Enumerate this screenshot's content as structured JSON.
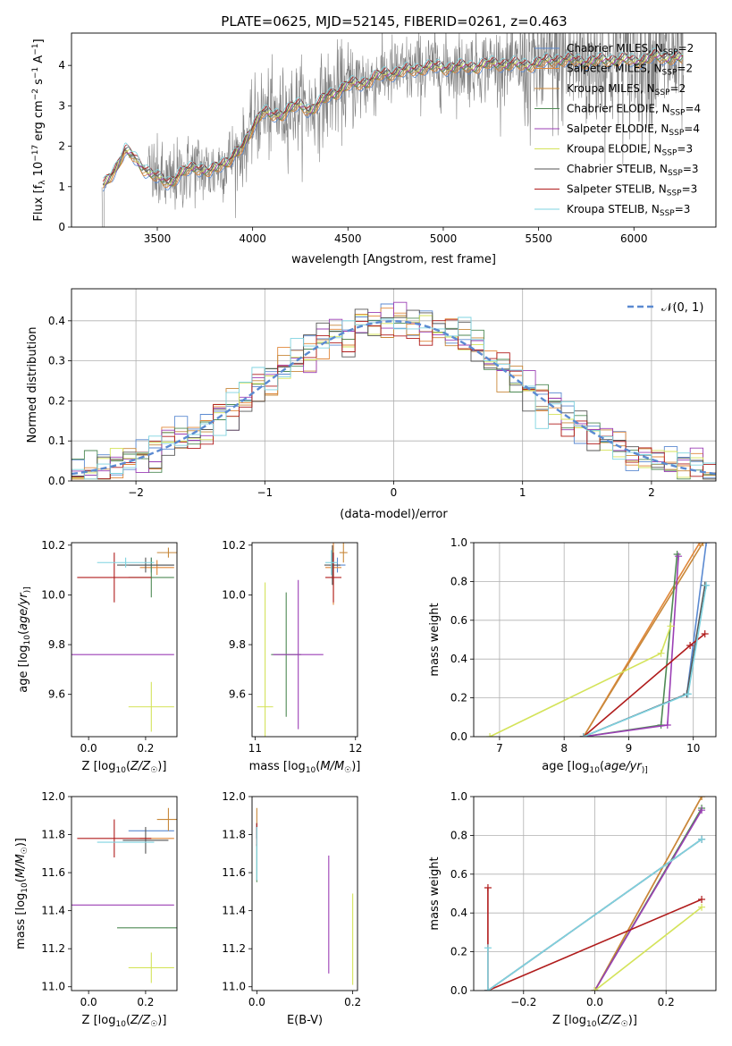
{
  "figure": {
    "title": "PLATE=0625, MJD=52145, FIBERID=0261, z=0.463"
  },
  "models": [
    {
      "name": "Chabrier MILES, N_SSP=2",
      "label_main": "Chabrier MILES, N",
      "label_sub": "SSP",
      "label_end": "=2",
      "color": "#5b8ad1"
    },
    {
      "name": "Salpeter MILES, N_SSP=2",
      "label_main": "Salpeter MILES, N",
      "label_sub": "SSP",
      "label_end": "=2",
      "color": "#e0873a"
    },
    {
      "name": "Kroupa MILES, N_SSP=2",
      "label_main": "Kroupa MILES, N",
      "label_sub": "SSP",
      "label_end": "=2",
      "color": "#c8883a"
    },
    {
      "name": "Chabrier ELODIE, N_SSP=4",
      "label_main": "Chabrier ELODIE, N",
      "label_sub": "SSP",
      "label_end": "=4",
      "color": "#4f8a55"
    },
    {
      "name": "Salpeter ELODIE, N_SSP=4",
      "label_main": "Salpeter ELODIE, N",
      "label_sub": "SSP",
      "label_end": "=4",
      "color": "#9b3fb5"
    },
    {
      "name": "Kroupa ELODIE, N_SSP=3",
      "label_main": "Kroupa ELODIE, N",
      "label_sub": "SSP",
      "label_end": "=3",
      "color": "#d4e35a"
    },
    {
      "name": "Chabrier STELIB, N_SSP=3",
      "label_main": "Chabrier STELIB, N",
      "label_sub": "SSP",
      "label_end": "=3",
      "color": "#555555"
    },
    {
      "name": "Salpeter STELIB, N_SSP=3",
      "label_main": "Salpeter STELIB, N",
      "label_sub": "SSP",
      "label_end": "=3",
      "color": "#b01c1c"
    },
    {
      "name": "Kroupa STELIB, N_SSP=3",
      "label_main": "Kroupa STELIB, N",
      "label_sub": "SSP",
      "label_end": "=3",
      "color": "#7fd3e0"
    }
  ],
  "chart_data": [
    {
      "id": "spectrum",
      "type": "line",
      "xlabel": "wavelength [Angstrom, rest frame]",
      "ylabel": "Flux [f_λ 10^-17 erg cm^-2 s^-1 A^-1]",
      "ylabel_parts": {
        "a": "Flux [f",
        "b": "λ",
        "c": "10",
        "d": "−17",
        "e": " erg cm",
        "f": "−2",
        "g": " s",
        "h": "−1",
        "i": " A",
        "j": "−1",
        "k": "]"
      },
      "xlim": [
        3050,
        6430
      ],
      "ylim": [
        0,
        4.8
      ],
      "xticks": [
        3500,
        4000,
        4500,
        5000,
        5500,
        6000
      ],
      "yticks": [
        0,
        1,
        2,
        3,
        4
      ],
      "data_color": "#808080",
      "continuum": [
        [
          3220,
          1.0
        ],
        [
          3280,
          1.45
        ],
        [
          3330,
          1.9
        ],
        [
          3380,
          1.7
        ],
        [
          3420,
          1.5
        ],
        [
          3460,
          1.35
        ],
        [
          3500,
          1.2
        ],
        [
          3560,
          1.1
        ],
        [
          3620,
          1.3
        ],
        [
          3700,
          1.5
        ],
        [
          3780,
          1.35
        ],
        [
          3850,
          1.6
        ],
        [
          3900,
          1.75
        ],
        [
          3950,
          1.95
        ],
        [
          4000,
          2.5
        ],
        [
          4050,
          2.85
        ],
        [
          4100,
          2.75
        ],
        [
          4150,
          2.8
        ],
        [
          4200,
          2.95
        ],
        [
          4250,
          3.0
        ],
        [
          4300,
          2.9
        ],
        [
          4350,
          3.05
        ],
        [
          4400,
          3.25
        ],
        [
          4500,
          3.5
        ],
        [
          4600,
          3.6
        ],
        [
          4700,
          3.8
        ],
        [
          4800,
          3.85
        ],
        [
          4900,
          3.95
        ],
        [
          5000,
          3.95
        ],
        [
          5100,
          3.95
        ],
        [
          5200,
          4.0
        ],
        [
          5300,
          4.05
        ],
        [
          5400,
          4.0
        ],
        [
          5500,
          4.05
        ],
        [
          5600,
          4.15
        ],
        [
          5700,
          4.1
        ],
        [
          5800,
          4.1
        ],
        [
          5900,
          4.15
        ],
        [
          6000,
          4.1
        ],
        [
          6100,
          4.2
        ],
        [
          6200,
          4.2
        ],
        [
          6250,
          4.15
        ]
      ],
      "legend_position": "top-right"
    },
    {
      "id": "residuals",
      "type": "line",
      "xlabel": "(data-model)/error",
      "ylabel": "Normed distribution",
      "xlim": [
        -2.5,
        2.5
      ],
      "ylim": [
        0,
        0.48
      ],
      "xticks": [
        -2,
        -1,
        0,
        1,
        2
      ],
      "xticklabels": [
        "−2",
        "−1",
        "0",
        "1",
        "2"
      ],
      "yticks": [
        0.0,
        0.1,
        0.2,
        0.3,
        0.4
      ],
      "yticklabels": [
        "0.0",
        "0.1",
        "0.2",
        "0.3",
        "0.4"
      ],
      "grid": true,
      "gaussian": {
        "label": "𝒩(0, 1)",
        "color": "#5b8ad1",
        "mean": 0,
        "sigma": 1
      },
      "legend_position": "top-right"
    },
    {
      "id": "age_vs_Z",
      "type": "scatter",
      "xlabel": "Z [log10(Z/Z☉)]",
      "xlabel_parts": {
        "a": "Z [log",
        "b": "10",
        "c": "(",
        "d": "Z/Z",
        "e": "☉",
        "f": ")]"
      },
      "ylabel": "age [log10(age/yr)]",
      "ylabel_parts": {
        "a": "age  [log",
        "b": "10",
        "c": "(",
        "d": "age/yr",
        "e": ")]"
      },
      "xlim": [
        -0.06,
        0.31
      ],
      "ylim": [
        9.43,
        10.21
      ],
      "xticks": [
        0.0,
        0.2
      ],
      "xticklabels": [
        "0.0",
        "0.2"
      ],
      "yticks": [
        9.6,
        9.8,
        10.0,
        10.2
      ],
      "yticklabels": [
        "9.6",
        "9.8",
        "10.0",
        "10.2"
      ],
      "points": [
        {
          "model": 0,
          "x": 0.22,
          "y": 10.12,
          "xerr": 0.08,
          "yerr": 0.03
        },
        {
          "model": 1,
          "x": 0.24,
          "y": 10.11,
          "xerr": 0.06,
          "yerr": 0.03
        },
        {
          "model": 2,
          "x": 0.28,
          "y": 10.17,
          "xerr": 0.04,
          "yerr": 0.02
        },
        {
          "model": 3,
          "x": 0.22,
          "y": 10.07,
          "xerr": 0.08,
          "yerr": 0.08
        },
        {
          "model": 4,
          "x": 0.12,
          "y": 9.76,
          "xerr": 0.18,
          "yerr": 0.0
        },
        {
          "model": 5,
          "x": 0.22,
          "y": 9.55,
          "xerr": 0.08,
          "yerr": 0.1
        },
        {
          "model": 6,
          "x": 0.2,
          "y": 10.12,
          "xerr": 0.1,
          "yerr": 0.03
        },
        {
          "model": 7,
          "x": 0.09,
          "y": 10.07,
          "xerr": 0.13,
          "yerr": 0.1
        },
        {
          "model": 8,
          "x": 0.13,
          "y": 10.13,
          "xerr": 0.1,
          "yerr": 0.02
        }
      ]
    },
    {
      "id": "age_vs_mass",
      "type": "scatter",
      "xlabel": "mass [log10(M/M☉)]",
      "xlabel_parts": {
        "a": "mass [log",
        "b": "10",
        "c": "(",
        "d": "M/M",
        "e": "☉",
        "f": ")]"
      },
      "xlim": [
        10.97,
        12.02
      ],
      "ylim": [
        9.43,
        10.21
      ],
      "xticks": [
        11,
        12
      ],
      "xticklabels": [
        "11",
        "12"
      ],
      "yticks": [
        9.6,
        9.8,
        10.0,
        10.2
      ],
      "yticklabels": [
        "9.6",
        "9.8",
        "10.0",
        "10.2"
      ],
      "points": [
        {
          "model": 0,
          "x": 11.82,
          "y": 10.12,
          "xerr": 0.08,
          "yerr": 0.03
        },
        {
          "model": 1,
          "x": 11.78,
          "y": 10.11,
          "xerr": 0.08,
          "yerr": 0.15
        },
        {
          "model": 2,
          "x": 11.88,
          "y": 10.17,
          "xerr": 0.04,
          "yerr": 0.04
        },
        {
          "model": 3,
          "x": 11.31,
          "y": 9.76,
          "xerr": 0.15,
          "yerr": 0.25
        },
        {
          "model": 4,
          "x": 11.43,
          "y": 9.76,
          "xerr": 0.25,
          "yerr": 0.3
        },
        {
          "model": 5,
          "x": 11.1,
          "y": 9.55,
          "xerr": 0.08,
          "yerr": 0.5
        },
        {
          "model": 6,
          "x": 11.77,
          "y": 10.12,
          "xerr": 0.08,
          "yerr": 0.08
        },
        {
          "model": 7,
          "x": 11.78,
          "y": 10.07,
          "xerr": 0.08,
          "yerr": 0.1
        },
        {
          "model": 8,
          "x": 11.76,
          "y": 10.13,
          "xerr": 0.06,
          "yerr": 0.05
        }
      ]
    },
    {
      "id": "massweight_vs_age",
      "type": "line",
      "xlabel": "age [log10(age/yr)]",
      "xlabel_parts": {
        "a": "age  [log",
        "b": "10",
        "c": "(",
        "d": "age/yr",
        "e": ")]"
      },
      "ylabel": "mass weight",
      "xlim": [
        6.6,
        10.35
      ],
      "ylim": [
        0,
        1.0
      ],
      "xticks": [
        7,
        8,
        9,
        10
      ],
      "xticklabels": [
        "7",
        "8",
        "9",
        "10"
      ],
      "yticks": [
        0.0,
        0.2,
        0.4,
        0.6,
        0.8,
        1.0
      ],
      "yticklabels": [
        "0.0",
        "0.2",
        "0.4",
        "0.6",
        "0.8",
        "1.0"
      ],
      "grid": true,
      "series": [
        {
          "model": 0,
          "x": [
            8.3,
            9.9,
            10.2
          ],
          "y": [
            0.0,
            0.22,
            1.0
          ]
        },
        {
          "model": 1,
          "x": [
            8.3,
            10.1
          ],
          "y": [
            0.0,
            1.0
          ]
        },
        {
          "model": 2,
          "x": [
            8.3,
            10.15
          ],
          "y": [
            0.0,
            1.0
          ]
        },
        {
          "model": 3,
          "x": [
            8.3,
            9.5,
            9.75
          ],
          "y": [
            0.0,
            0.06,
            0.94
          ]
        },
        {
          "model": 4,
          "x": [
            8.3,
            9.6,
            9.77
          ],
          "y": [
            0.0,
            0.06,
            0.93
          ]
        },
        {
          "model": 5,
          "x": [
            6.85,
            9.5,
            9.65
          ],
          "y": [
            0.0,
            0.43,
            0.57
          ]
        },
        {
          "model": 6,
          "x": [
            8.3,
            9.9,
            10.18
          ],
          "y": [
            0.0,
            0.22,
            0.78
          ]
        },
        {
          "model": 7,
          "x": [
            8.3,
            9.95,
            10.18
          ],
          "y": [
            0.0,
            0.47,
            0.53
          ]
        },
        {
          "model": 8,
          "x": [
            8.3,
            9.92,
            10.2
          ],
          "y": [
            0.0,
            0.22,
            0.78
          ]
        }
      ]
    },
    {
      "id": "mass_vs_Z",
      "type": "scatter",
      "xlabel": "Z [log10(Z/Z☉)]",
      "xlabel_parts": {
        "a": "Z [log",
        "b": "10",
        "c": "(",
        "d": "Z/Z",
        "e": "☉",
        "f": ")]"
      },
      "ylabel": "mass [log10(M/M☉)]",
      "ylabel_parts": {
        "a": "mass [log",
        "b": "10",
        "c": "(",
        "d": "M/M",
        "e": "☉",
        "f": ")]"
      },
      "xlim": [
        -0.06,
        0.31
      ],
      "ylim": [
        10.98,
        12.0
      ],
      "xticks": [
        0.0,
        0.2
      ],
      "xticklabels": [
        "0.0",
        "0.2"
      ],
      "yticks": [
        11.0,
        11.2,
        11.4,
        11.6,
        11.8,
        12.0
      ],
      "yticklabels": [
        "11.0",
        "11.2",
        "11.4",
        "11.6",
        "11.8",
        "12.0"
      ],
      "points": [
        {
          "model": 0,
          "x": 0.22,
          "y": 11.82,
          "xerr": 0.08,
          "yerr": 0.0
        },
        {
          "model": 1,
          "x": 0.24,
          "y": 11.78,
          "xerr": 0.06,
          "yerr": 0.0
        },
        {
          "model": 2,
          "x": 0.28,
          "y": 11.88,
          "xerr": 0.04,
          "yerr": 0.06
        },
        {
          "model": 3,
          "x": 0.22,
          "y": 11.31,
          "xerr": 0.12,
          "yerr": 0.0
        },
        {
          "model": 4,
          "x": 0.12,
          "y": 11.43,
          "xerr": 0.18,
          "yerr": 0.0
        },
        {
          "model": 5,
          "x": 0.22,
          "y": 11.1,
          "xerr": 0.08,
          "yerr": 0.08
        },
        {
          "model": 6,
          "x": 0.2,
          "y": 11.77,
          "xerr": 0.08,
          "yerr": 0.07
        },
        {
          "model": 7,
          "x": 0.09,
          "y": 11.78,
          "xerr": 0.13,
          "yerr": 0.1
        },
        {
          "model": 8,
          "x": 0.13,
          "y": 11.76,
          "xerr": 0.1,
          "yerr": 0.0
        }
      ]
    },
    {
      "id": "mass_vs_EBV",
      "type": "scatter",
      "xlabel": "E(B-V)",
      "xlim": [
        -0.01,
        0.21
      ],
      "ylim": [
        10.98,
        12.0
      ],
      "xticks": [
        0.0,
        0.2
      ],
      "xticklabels": [
        "0.0",
        "0.2"
      ],
      "yticks": [
        11.0,
        11.2,
        11.4,
        11.6,
        11.8,
        12.0
      ],
      "yticklabels": [
        "11.0",
        "11.2",
        "11.4",
        "11.6",
        "11.8",
        "12.0"
      ],
      "points": [
        {
          "model": 0,
          "x": 0.0,
          "y": 11.82,
          "xerr": 0.0,
          "yerr": 0.04
        },
        {
          "model": 1,
          "x": 0.0,
          "y": 11.78,
          "xerr": 0.0,
          "yerr": 0.04
        },
        {
          "model": 2,
          "x": 0.0,
          "y": 11.88,
          "xerr": 0.0,
          "yerr": 0.06
        },
        {
          "model": 3,
          "x": 0.0,
          "y": 11.65,
          "xerr": 0.0,
          "yerr": 0.1
        },
        {
          "model": 4,
          "x": 0.15,
          "y": 11.38,
          "xerr": 0.0,
          "yerr": 0.31
        },
        {
          "model": 5,
          "x": 0.2,
          "y": 11.25,
          "xerr": 0.0,
          "yerr": 0.24
        },
        {
          "model": 6,
          "x": 0.0,
          "y": 11.82,
          "xerr": 0.0,
          "yerr": 0.04
        },
        {
          "model": 7,
          "x": 0.0,
          "y": 11.8,
          "xerr": 0.0,
          "yerr": 0.06
        },
        {
          "model": 8,
          "x": 0.0,
          "y": 11.7,
          "xerr": 0.0,
          "yerr": 0.14
        }
      ]
    },
    {
      "id": "massweight_vs_Z",
      "type": "line",
      "xlabel": "Z [log10(Z/Z☉)]",
      "xlabel_parts": {
        "a": "Z [log",
        "b": "10",
        "c": "(",
        "d": "Z/Z",
        "e": "☉",
        "f": ")]"
      },
      "ylabel": "mass weight",
      "xlim": [
        -0.34,
        0.34
      ],
      "ylim": [
        0,
        1.0
      ],
      "xticks": [
        -0.2,
        0.0,
        0.2
      ],
      "xticklabels": [
        "−0.2",
        "0.0",
        "0.2"
      ],
      "yticks": [
        0.0,
        0.2,
        0.4,
        0.6,
        0.8,
        1.0
      ],
      "yticklabels": [
        "0.0",
        "0.2",
        "0.4",
        "0.6",
        "0.8",
        "1.0"
      ],
      "grid": true,
      "series": [
        {
          "model": 0,
          "x": [
            -0.3,
            0.3
          ],
          "y": [
            0.0,
            0.78
          ]
        },
        {
          "model": 1,
          "x": [
            0.0,
            0.3
          ],
          "y": [
            0.0,
            1.0
          ]
        },
        {
          "model": 2,
          "x": [
            0.0,
            0.3
          ],
          "y": [
            0.0,
            1.0
          ]
        },
        {
          "model": 3,
          "x": [
            0.0,
            0.3
          ],
          "y": [
            0.0,
            0.94
          ]
        },
        {
          "model": 4,
          "x": [
            0.0,
            0.3
          ],
          "y": [
            0.0,
            0.93
          ]
        },
        {
          "model": 5,
          "x": [
            0.0,
            0.3
          ],
          "y": [
            0.0,
            0.43
          ]
        },
        {
          "model": 6,
          "x": [
            -0.3,
            0.3
          ],
          "y": [
            0.0,
            0.78
          ]
        },
        {
          "model": 7,
          "x": [
            -0.3,
            -0.3,
            -0.3,
            0.3
          ],
          "y": [
            0.53,
            0.0,
            0.0,
            0.47
          ]
        },
        {
          "model": 8,
          "x": [
            -0.3,
            -0.3,
            -0.3,
            0.3
          ],
          "y": [
            0.22,
            0.0,
            0.0,
            0.78
          ]
        }
      ]
    }
  ]
}
